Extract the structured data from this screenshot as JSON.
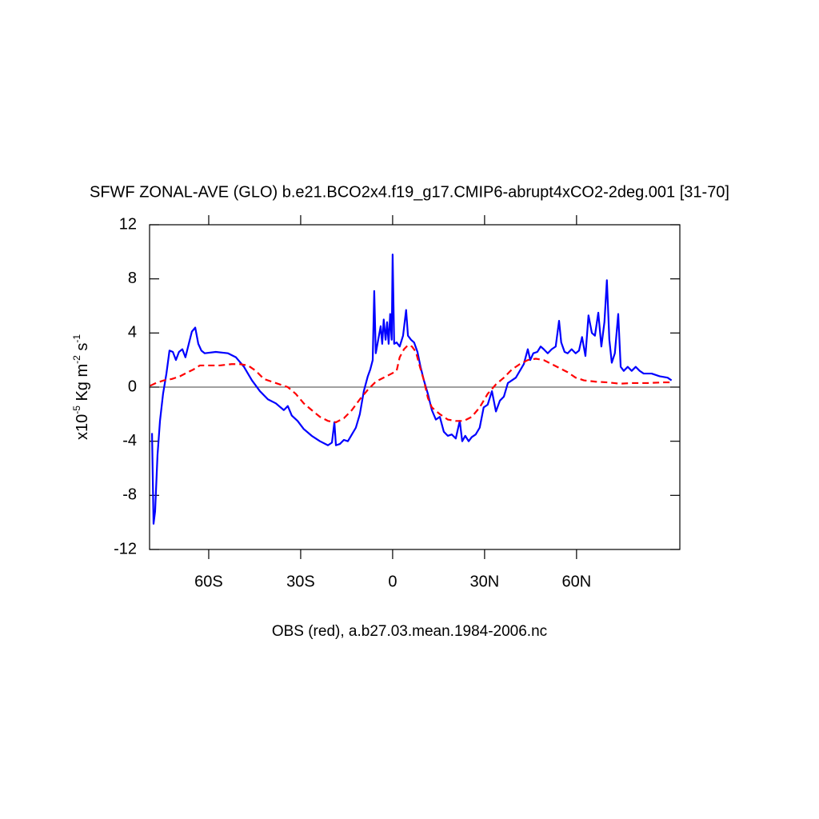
{
  "chart_data": {
    "type": "line",
    "title": "SFWF ZONAL-AVE (GLO) b.e21.BCO2x4.f19_g17.CMIP6-abrupt4xCO2-2deg.001 [31-70]",
    "xlabel": "OBS (red), a.b27.03.mean.1984-2006.nc",
    "ylabel_parts": [
      "x10",
      "-5",
      " Kg m",
      "-2",
      " s",
      "-1"
    ],
    "xlim": [
      -79.3,
      93.7
    ],
    "ylim": [
      -12,
      12
    ],
    "xticks": [
      {
        "value": -60,
        "label": "60S"
      },
      {
        "value": -30,
        "label": "30S"
      },
      0,
      {
        "value": 30,
        "label": "30N"
      },
      {
        "value": 60,
        "label": "60N"
      }
    ],
    "yticks": [
      -12,
      -8,
      -4,
      0,
      4,
      8,
      12
    ],
    "reference_line": 0,
    "series": [
      {
        "color": "#0000ff",
        "dash": "solid",
        "x": [
          -78.5,
          -78.0,
          -77.5,
          -76.7,
          -75.9,
          -74.9,
          -73.8,
          -72.8,
          -71.7,
          -70.7,
          -69.7,
          -68.6,
          -67.6,
          -66.5,
          -65.5,
          -64.4,
          -63.4,
          -62.4,
          -61.3,
          -57.7,
          -53.7,
          -51.1,
          -48.5,
          -45.9,
          -43.3,
          -40.7,
          -38.1,
          -35.5,
          -34.2,
          -32.9,
          -31.0,
          -29.0,
          -26.4,
          -23.7,
          -21.1,
          -19.8,
          -19.0,
          -18.5,
          -17.2,
          -15.9,
          -14.6,
          -13.3,
          -12.0,
          -10.7,
          -9.4,
          -8.1,
          -7.3,
          -6.5,
          -6.0,
          -5.5,
          -4.7,
          -3.9,
          -3.4,
          -2.9,
          -2.3,
          -1.8,
          -1.3,
          -0.8,
          -0.3,
          0,
          0.5,
          1.3,
          2.3,
          3.4,
          4.4,
          5.0,
          6.0,
          7.0,
          8.1,
          9.1,
          10.2,
          11.5,
          12.8,
          14.1,
          15.4,
          16.7,
          18.0,
          19.3,
          20.6,
          21.9,
          22.7,
          23.7,
          24.8,
          25.8,
          27.1,
          28.4,
          29.7,
          31.0,
          32.4,
          33.7,
          35.0,
          36.3,
          37.6,
          38.9,
          40.2,
          41.5,
          42.8,
          44.1,
          44.9,
          45.9,
          47.2,
          48.3,
          49.3,
          50.6,
          51.9,
          53.2,
          54.3,
          55.0,
          56.1,
          57.1,
          58.4,
          59.7,
          60.8,
          61.8,
          62.9,
          63.9,
          65.0,
          66.0,
          67.1,
          68.1,
          69.1,
          69.9,
          70.7,
          71.5,
          72.5,
          73.6,
          74.4,
          75.4,
          76.7,
          78.0,
          79.3,
          80.6,
          81.9,
          84.5,
          87.1,
          89.7,
          91.0
        ],
        "values": [
          -3.4,
          -10.1,
          -9.2,
          -5,
          -2.5,
          -0.5,
          1,
          2.7,
          2.6,
          2.0,
          2.6,
          2.8,
          2.2,
          3.2,
          4.1,
          4.4,
          3.2,
          2.7,
          2.5,
          2.6,
          2.5,
          2.2,
          1.5,
          0.5,
          -0.3,
          -0.9,
          -1.2,
          -1.7,
          -1.4,
          -2.1,
          -2.5,
          -3.1,
          -3.6,
          -4.0,
          -4.3,
          -4.1,
          -2.6,
          -4.3,
          -4.2,
          -3.9,
          -4.0,
          -3.5,
          -3,
          -2,
          -0.3,
          0.8,
          1.3,
          2,
          7.1,
          2.5,
          3.5,
          4.5,
          3.2,
          5,
          3.5,
          4.8,
          3.2,
          5.4,
          3.5,
          9.8,
          3.2,
          3.3,
          3.0,
          3.8,
          5.7,
          3.8,
          3.5,
          3.3,
          2.6,
          1.5,
          0.5,
          -0.5,
          -1.7,
          -2.4,
          -2.2,
          -3.3,
          -3.6,
          -3.5,
          -3.8,
          -2.5,
          -4.0,
          -3.6,
          -4.0,
          -3.7,
          -3.5,
          -3.0,
          -1.5,
          -1.3,
          -0.3,
          -1.8,
          -1.0,
          -0.7,
          0.3,
          0.5,
          0.7,
          1.2,
          1.7,
          2.8,
          2.0,
          2.5,
          2.6,
          3,
          2.8,
          2.5,
          2.8,
          3.0,
          4.9,
          3.3,
          2.6,
          2.5,
          2.8,
          2.5,
          2.7,
          3.7,
          2.3,
          5.3,
          4,
          3.8,
          5.5,
          3,
          4.8,
          7.9,
          3.5,
          1.8,
          2.5,
          5.4,
          1.5,
          1.2,
          1.5,
          1.2,
          1.5,
          1.2,
          1.0,
          1.0,
          0.8,
          0.7,
          0.5
        ]
      },
      {
        "color": "#ff0000",
        "dash": "dashed",
        "x": [
          -79.1,
          -77.2,
          -74.6,
          -72.0,
          -69.4,
          -66.8,
          -65.0,
          -62.9,
          -60.3,
          -56.4,
          -52.5,
          -49.9,
          -47.2,
          -44.6,
          -42.0,
          -38.1,
          -34.2,
          -31.6,
          -29.0,
          -26.4,
          -23.7,
          -21.1,
          -18.5,
          -15.9,
          -13.3,
          -10.7,
          -8.1,
          -5.5,
          -2.9,
          -0.3,
          1.3,
          2.3,
          3.7,
          5.0,
          6.3,
          7.6,
          8.9,
          10.2,
          11.5,
          12.8,
          15.4,
          18.0,
          20.6,
          23.2,
          25.8,
          28.4,
          31.0,
          33.7,
          36.3,
          38.9,
          41.5,
          44.1,
          46.7,
          49.3,
          51.9,
          54.5,
          57.1,
          59.7,
          62.4,
          66.3,
          70.2,
          74.1,
          78.0,
          83.2,
          88.4,
          91.0
        ],
        "values": [
          0.1,
          0.3,
          0.5,
          0.6,
          0.8,
          1.1,
          1.3,
          1.6,
          1.6,
          1.6,
          1.7,
          1.7,
          1.6,
          1.2,
          0.6,
          0.3,
          0,
          -0.5,
          -1.2,
          -1.7,
          -2.2,
          -2.5,
          -2.6,
          -2.3,
          -1.7,
          -0.9,
          -0.2,
          0.4,
          0.7,
          1,
          1.2,
          2.2,
          2.8,
          3.1,
          3.0,
          2.6,
          1.5,
          0.5,
          -0.8,
          -1.5,
          -2.0,
          -2.4,
          -2.5,
          -2.5,
          -2.2,
          -1.5,
          -0.5,
          0.2,
          0.7,
          1.3,
          1.7,
          2.0,
          2.1,
          2.0,
          1.7,
          1.4,
          1.1,
          0.7,
          0.5,
          0.4,
          0.35,
          0.25,
          0.3,
          0.3,
          0.35,
          0.35
        ]
      }
    ]
  }
}
